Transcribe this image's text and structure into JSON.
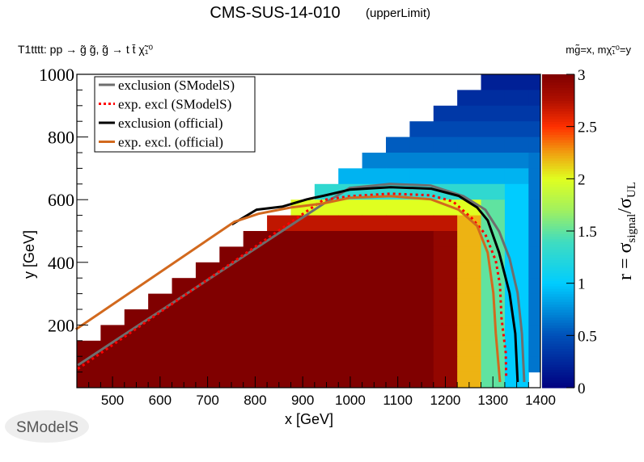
{
  "header": {
    "title": "CMS-SUS-14-010",
    "subtitle": "(upperLimit)",
    "process": "T1tttt: pp → g̃ g̃, g̃ → t t̄ χ̃₁⁰",
    "mass_label": "mɡ̃=x, mχ̃₁⁰=y"
  },
  "logo": {
    "text": "SModelS"
  },
  "chart_data": {
    "type": "heatmap",
    "xlabel": "x [GeV]",
    "ylabel": "y [GeV]",
    "zlabel_main": "r = σ",
    "zlabel_sub1": "signal",
    "zlabel_mid": "/σ",
    "zlabel_sub2": "UL",
    "xlim": [
      425,
      1400
    ],
    "ylim": [
      0,
      1000
    ],
    "zlim": [
      0,
      3
    ],
    "xticks": [
      500,
      600,
      700,
      800,
      900,
      1000,
      1100,
      1200,
      1300,
      1400
    ],
    "yticks": [
      200,
      400,
      600,
      800,
      1000
    ],
    "zticks": [
      0,
      0.5,
      1,
      1.5,
      2,
      2.5,
      3
    ],
    "bin_width": 50,
    "x_centers": [
      450,
      500,
      550,
      600,
      650,
      700,
      750,
      800,
      850,
      900,
      950,
      1000,
      1050,
      1100,
      1150,
      1200,
      1250,
      1300,
      1350,
      1400
    ],
    "y_centers": [
      975,
      925,
      875,
      825,
      775,
      725,
      675,
      625,
      575,
      525,
      475,
      425,
      375,
      325,
      275,
      225,
      175,
      125,
      75,
      25
    ],
    "z": [
      [
        null,
        null,
        null,
        null,
        null,
        null,
        null,
        null,
        null,
        null,
        null,
        null,
        null,
        null,
        null,
        null,
        null,
        0.2,
        0.2,
        0.2
      ],
      [
        null,
        null,
        null,
        null,
        null,
        null,
        null,
        null,
        null,
        null,
        null,
        null,
        null,
        null,
        null,
        null,
        0.28,
        0.28,
        0.28,
        0.28
      ],
      [
        null,
        null,
        null,
        null,
        null,
        null,
        null,
        null,
        null,
        null,
        null,
        null,
        null,
        null,
        null,
        0.35,
        0.35,
        0.35,
        0.35,
        0.35
      ],
      [
        null,
        null,
        null,
        null,
        null,
        null,
        null,
        null,
        null,
        null,
        null,
        null,
        null,
        null,
        0.45,
        0.45,
        0.45,
        0.45,
        0.45,
        0.45
      ],
      [
        null,
        null,
        null,
        null,
        null,
        null,
        null,
        null,
        null,
        null,
        null,
        null,
        null,
        0.55,
        0.55,
        0.55,
        0.55,
        0.55,
        0.55,
        0.55
      ],
      [
        null,
        null,
        null,
        null,
        null,
        null,
        null,
        null,
        null,
        null,
        null,
        null,
        0.7,
        0.7,
        0.7,
        0.7,
        0.7,
        0.7,
        0.7,
        0.65
      ],
      [
        null,
        null,
        null,
        null,
        null,
        null,
        null,
        null,
        null,
        null,
        null,
        0.9,
        0.9,
        0.9,
        0.9,
        0.9,
        0.9,
        0.9,
        0.9,
        0.65
      ],
      [
        null,
        null,
        null,
        null,
        null,
        null,
        null,
        null,
        null,
        null,
        1.3,
        1.3,
        1.3,
        1.3,
        1.3,
        1.3,
        1.3,
        1.3,
        1.0,
        0.65
      ],
      [
        null,
        null,
        null,
        null,
        null,
        null,
        null,
        null,
        null,
        2.0,
        2.0,
        2.0,
        2.0,
        2.0,
        2.0,
        2.0,
        2.0,
        1.5,
        1.0,
        0.65
      ],
      [
        null,
        null,
        null,
        null,
        null,
        null,
        null,
        null,
        2.7,
        2.7,
        2.7,
        2.7,
        2.7,
        2.7,
        2.7,
        2.7,
        2.2,
        1.5,
        1.0,
        0.65
      ],
      [
        null,
        null,
        null,
        null,
        null,
        null,
        null,
        3,
        3,
        3,
        3,
        3,
        3,
        3,
        3,
        2.9,
        2.2,
        1.5,
        1.0,
        0.65
      ],
      [
        null,
        null,
        null,
        null,
        null,
        null,
        3,
        3,
        3,
        3,
        3,
        3,
        3,
        3,
        3,
        2.9,
        2.2,
        1.5,
        1.0,
        0.65
      ],
      [
        null,
        null,
        null,
        null,
        null,
        3,
        3,
        3,
        3,
        3,
        3,
        3,
        3,
        3,
        3,
        2.9,
        2.2,
        1.5,
        1.0,
        0.65
      ],
      [
        null,
        null,
        null,
        null,
        3,
        3,
        3,
        3,
        3,
        3,
        3,
        3,
        3,
        3,
        3,
        2.9,
        2.2,
        1.5,
        1.0,
        0.65
      ],
      [
        null,
        null,
        null,
        3,
        3,
        3,
        3,
        3,
        3,
        3,
        3,
        3,
        3,
        3,
        3,
        2.9,
        2.2,
        1.5,
        1.0,
        0.65
      ],
      [
        null,
        null,
        3,
        3,
        3,
        3,
        3,
        3,
        3,
        3,
        3,
        3,
        3,
        3,
        3,
        2.9,
        2.2,
        1.5,
        1.0,
        0.65
      ],
      [
        null,
        3,
        3,
        3,
        3,
        3,
        3,
        3,
        3,
        3,
        3,
        3,
        3,
        3,
        3,
        2.9,
        2.2,
        1.5,
        1.0,
        0.65
      ],
      [
        3,
        3,
        3,
        3,
        3,
        3,
        3,
        3,
        3,
        3,
        3,
        3,
        3,
        3,
        3,
        2.9,
        2.2,
        1.5,
        1.0,
        0.65
      ],
      [
        3,
        3,
        3,
        3,
        3,
        3,
        3,
        3,
        3,
        3,
        3,
        3,
        3,
        3,
        3,
        2.9,
        2.2,
        1.5,
        1.0,
        0.65
      ],
      [
        3,
        3,
        3,
        3,
        3,
        3,
        3,
        3,
        3,
        3,
        3,
        3,
        3,
        3,
        3,
        2.9,
        2.2,
        1.5,
        1.0,
        null
      ]
    ],
    "colormap": [
      [
        0,
        "#000080"
      ],
      [
        0.5,
        "#0050b8"
      ],
      [
        1.0,
        "#00ccff"
      ],
      [
        1.4,
        "#40dcc0"
      ],
      [
        1.7,
        "#a0f060"
      ],
      [
        2.0,
        "#e0ff20"
      ],
      [
        2.25,
        "#f0a010"
      ],
      [
        2.5,
        "#ff3000"
      ],
      [
        2.75,
        "#b01000"
      ],
      [
        3,
        "#800000"
      ]
    ],
    "legend": {
      "placement": "top-left"
    },
    "series": [
      {
        "name": "exclusion (SModelS)",
        "color": "#6e6e6e",
        "style": "solid",
        "points": [
          [
            427,
            72
          ],
          [
            943,
            586
          ],
          [
            999,
            637
          ],
          [
            1084,
            650
          ],
          [
            1169,
            645
          ],
          [
            1238,
            611
          ],
          [
            1284,
            568
          ],
          [
            1313,
            499
          ],
          [
            1335,
            413
          ],
          [
            1352,
            302
          ],
          [
            1361,
            173
          ],
          [
            1366,
            18
          ]
        ]
      },
      {
        "name": "exp. excl (SModelS)",
        "color": "#ff0000",
        "style": "dotted",
        "points": [
          [
            427,
            60
          ],
          [
            943,
            599
          ],
          [
            999,
            611
          ],
          [
            1085,
            619
          ],
          [
            1170,
            614
          ],
          [
            1216,
            594
          ],
          [
            1255,
            542
          ],
          [
            1284,
            490
          ],
          [
            1306,
            405
          ],
          [
            1315,
            328
          ],
          [
            1318,
            224
          ],
          [
            1327,
            111
          ],
          [
            1328,
            34
          ]
        ]
      },
      {
        "name": "exclusion (official)",
        "color": "#000000",
        "style": "solid",
        "points": [
          [
            751,
            521
          ],
          [
            803,
            568
          ],
          [
            858,
            578
          ],
          [
            909,
            601
          ],
          [
            943,
            612
          ],
          [
            999,
            632
          ],
          [
            1085,
            640
          ],
          [
            1170,
            635
          ],
          [
            1228,
            612
          ],
          [
            1267,
            575
          ],
          [
            1289,
            534
          ],
          [
            1313,
            431
          ],
          [
            1335,
            302
          ],
          [
            1347,
            173
          ],
          [
            1352,
            18
          ]
        ]
      },
      {
        "name": "exp. excl. (official)",
        "color": "#d2691e",
        "style": "solid",
        "points": [
          [
            423,
            186
          ],
          [
            756,
            529
          ],
          [
            807,
            555
          ],
          [
            875,
            575
          ],
          [
            943,
            588
          ],
          [
            999,
            606
          ],
          [
            1085,
            611
          ],
          [
            1170,
            601
          ],
          [
            1228,
            568
          ],
          [
            1267,
            516
          ],
          [
            1289,
            431
          ],
          [
            1301,
            302
          ],
          [
            1306,
            173
          ],
          [
            1315,
            18
          ]
        ]
      }
    ]
  }
}
